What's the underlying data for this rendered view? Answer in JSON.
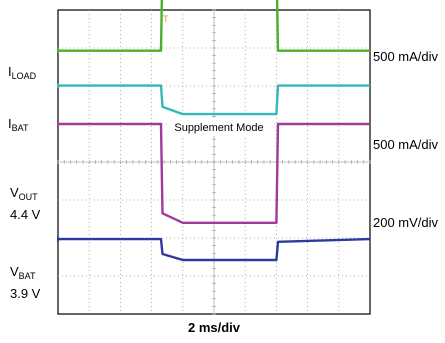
{
  "chart_data": {
    "type": "line",
    "time_per_div_label": "2 ms/div",
    "x_divisions": 10,
    "y_divisions": 8,
    "grid": true,
    "annotation": "Supplement Mode",
    "x": [
      0,
      3.3,
      3.35,
      4.0,
      7.0,
      7.05,
      10
    ],
    "channels": [
      {
        "key": "iload",
        "label_main": "I",
        "label_sub": "LOAD",
        "label_value": "",
        "scale": "500 mA/div",
        "color": "#4caf2e",
        "values": [
          2.93,
          2.93,
          5.35,
          5.32,
          5.29,
          2.93,
          2.93
        ]
      },
      {
        "key": "ibat",
        "label_main": "I",
        "label_sub": "BAT",
        "label_value": "",
        "scale": "500 mA/div",
        "color": "#35b9b4",
        "values": [
          2.01,
          2.01,
          1.45,
          1.26,
          1.26,
          2.01,
          2.01
        ]
      },
      {
        "key": "vout",
        "label_main": "V",
        "label_sub": "OUT",
        "label_value": "4.4 V",
        "scale": "200 mV/div",
        "color": "#a13a9a",
        "values": [
          1.0,
          1.0,
          -1.35,
          -1.6,
          -1.6,
          1.0,
          1.0
        ]
      },
      {
        "key": "vbat",
        "label_main": "V",
        "label_sub": "BAT",
        "label_value": "3.9 V",
        "scale": "",
        "color": "#2d3aa0",
        "values": [
          -2.03,
          -2.03,
          -2.42,
          -2.58,
          -2.58,
          -2.1,
          -2.03
        ]
      }
    ]
  }
}
